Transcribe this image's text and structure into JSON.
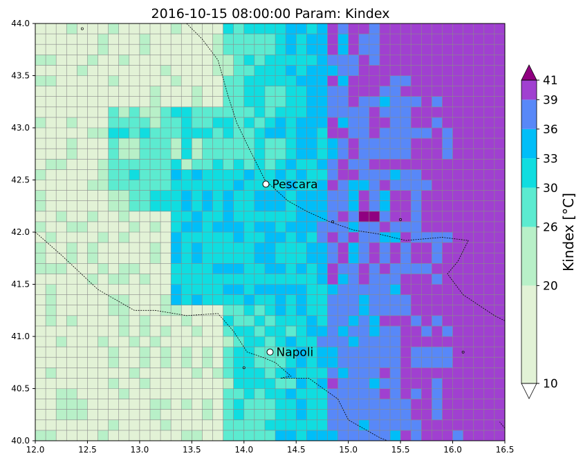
{
  "chart_data": {
    "type": "heatmap",
    "title": "2016-10-15 08:00:00 Param: Kindex",
    "xlim": [
      12.0,
      16.5
    ],
    "ylim": [
      40.0,
      44.0
    ],
    "x_ticks": [
      "12.0",
      "12.5",
      "13.0",
      "13.5",
      "14.0",
      "14.5",
      "15.0",
      "15.5",
      "16.0",
      "16.5"
    ],
    "y_ticks": [
      "40.0",
      "40.5",
      "41.0",
      "41.5",
      "42.0",
      "42.5",
      "43.0",
      "43.5",
      "44.0"
    ],
    "grid_step": 0.1,
    "colorbar": {
      "label": "Kindex  [°C]",
      "ticks": [
        "10",
        "20",
        "26",
        "30",
        "33",
        "36",
        "39",
        "41"
      ],
      "levels": [
        10,
        20,
        26,
        30,
        33,
        36,
        39,
        41
      ],
      "colors": [
        "#e2f2d6",
        "#b8f0c8",
        "#5cebd0",
        "#10dde0",
        "#00bef8",
        "#5888f8",
        "#a040d0"
      ],
      "extend_max_color": "#900080",
      "extend_min_color": "#ffffff"
    },
    "cities": [
      {
        "name": "Pescara",
        "lon": 14.21,
        "lat": 42.46
      },
      {
        "name": "Napoli",
        "lon": 14.25,
        "lat": 40.85
      }
    ],
    "coastline_color": "#000000",
    "grid_color": "#8a8a8a"
  }
}
